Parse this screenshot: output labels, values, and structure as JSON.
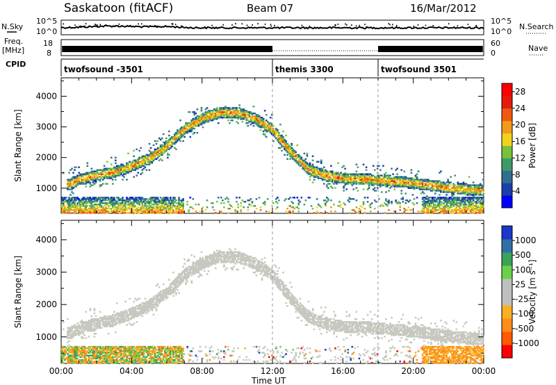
{
  "header": {
    "station": "Saskatoon (fitACF)",
    "beam": "Beam 07",
    "date": "16/Mar/2012"
  },
  "sky_panel": {
    "left_label": "N.Sky",
    "right_label": "N.Search",
    "left_ticks": [
      "10^5",
      "10^0"
    ],
    "right_ticks": [
      "10^5",
      "10^0"
    ]
  },
  "freq_panel": {
    "left_label_1": "Freq.",
    "left_label_2": "[MHz]",
    "right_label": "Nave",
    "left_ticks": [
      "18",
      "8"
    ],
    "right_ticks": [
      "60",
      "0"
    ]
  },
  "cpid_panel": {
    "label": "CPID",
    "segments": [
      {
        "name": "twofsound -3501",
        "start_hour": 0
      },
      {
        "name": "themis 3300",
        "start_hour": 12
      },
      {
        "name": "twofsound 3501",
        "start_hour": 18
      }
    ]
  },
  "colors": {
    "power_scale": [
      "#0000ff",
      "#1a3fa8",
      "#2f6e8f",
      "#3f9a6a",
      "#77c23a",
      "#f2d21f",
      "#f29a1a",
      "#f05a10",
      "#e51a0a",
      "#ff0000"
    ],
    "velocity_scale": [
      "#ff0000",
      "#ff5a00",
      "#ff8c1a",
      "#f7b020",
      "#bfbfbf",
      "#bfbfbf",
      "#6bd14a",
      "#3aa35a",
      "#2e6fa8",
      "#1c38c8"
    ],
    "ground_scatter": "#c8c8c0"
  },
  "chart_data": [
    {
      "type": "heatmap",
      "title": "Power",
      "xlabel": "",
      "ylabel": "Slant Range [km]",
      "x_ticks": [
        "00:00",
        "04:00",
        "08:00",
        "12:00",
        "16:00",
        "20:00",
        "00:00"
      ],
      "xlim_hours": [
        0,
        24
      ],
      "y_ticks": [
        "1000",
        "2000",
        "3000",
        "4000"
      ],
      "ylim_km": [
        180,
        4600
      ],
      "colorbar_label": "Power [dB]",
      "colorbar_ticks": [
        "4",
        "8",
        "12",
        "16",
        "20",
        "24",
        "28"
      ],
      "colorbar_range": [
        0,
        30
      ],
      "vertical_markers_hours": [
        12,
        18
      ],
      "scatter_boundary_km": [
        {
          "hour": 0.5,
          "km": 1100
        },
        {
          "hour": 1.0,
          "km": 1250
        },
        {
          "hour": 2.0,
          "km": 1400
        },
        {
          "hour": 3.0,
          "km": 1500
        },
        {
          "hour": 4.0,
          "km": 1700
        },
        {
          "hour": 5.0,
          "km": 1950
        },
        {
          "hour": 6.0,
          "km": 2350
        },
        {
          "hour": 7.0,
          "km": 2900
        },
        {
          "hour": 8.0,
          "km": 3250
        },
        {
          "hour": 9.0,
          "km": 3450
        },
        {
          "hour": 10.0,
          "km": 3450
        },
        {
          "hour": 11.0,
          "km": 3250
        },
        {
          "hour": 12.0,
          "km": 2900
        },
        {
          "hour": 13.0,
          "km": 2200
        },
        {
          "hour": 14.0,
          "km": 1600
        },
        {
          "hour": 15.0,
          "km": 1400
        },
        {
          "hour": 16.0,
          "km": 1300
        },
        {
          "hour": 18.0,
          "km": 1250
        },
        {
          "hour": 20.0,
          "km": 1150
        },
        {
          "hour": 22.0,
          "km": 1000
        },
        {
          "hour": 23.9,
          "km": 900
        }
      ]
    },
    {
      "type": "heatmap",
      "title": "Velocity",
      "xlabel": "Time UT",
      "ylabel": "Slant Range [km]",
      "x_ticks": [
        "00:00",
        "04:00",
        "08:00",
        "12:00",
        "16:00",
        "20:00",
        "00:00"
      ],
      "xlim_hours": [
        0,
        24
      ],
      "y_ticks": [
        "1000",
        "2000",
        "3000",
        "4000"
      ],
      "ylim_km": [
        180,
        4600
      ],
      "colorbar_label": "Velocity [m s⁻¹]",
      "colorbar_ticks": [
        "1000",
        "500",
        "100",
        "25",
        "-25",
        "-100",
        "-500",
        "-1000"
      ],
      "vertical_markers_hours": [
        12,
        18
      ]
    }
  ]
}
